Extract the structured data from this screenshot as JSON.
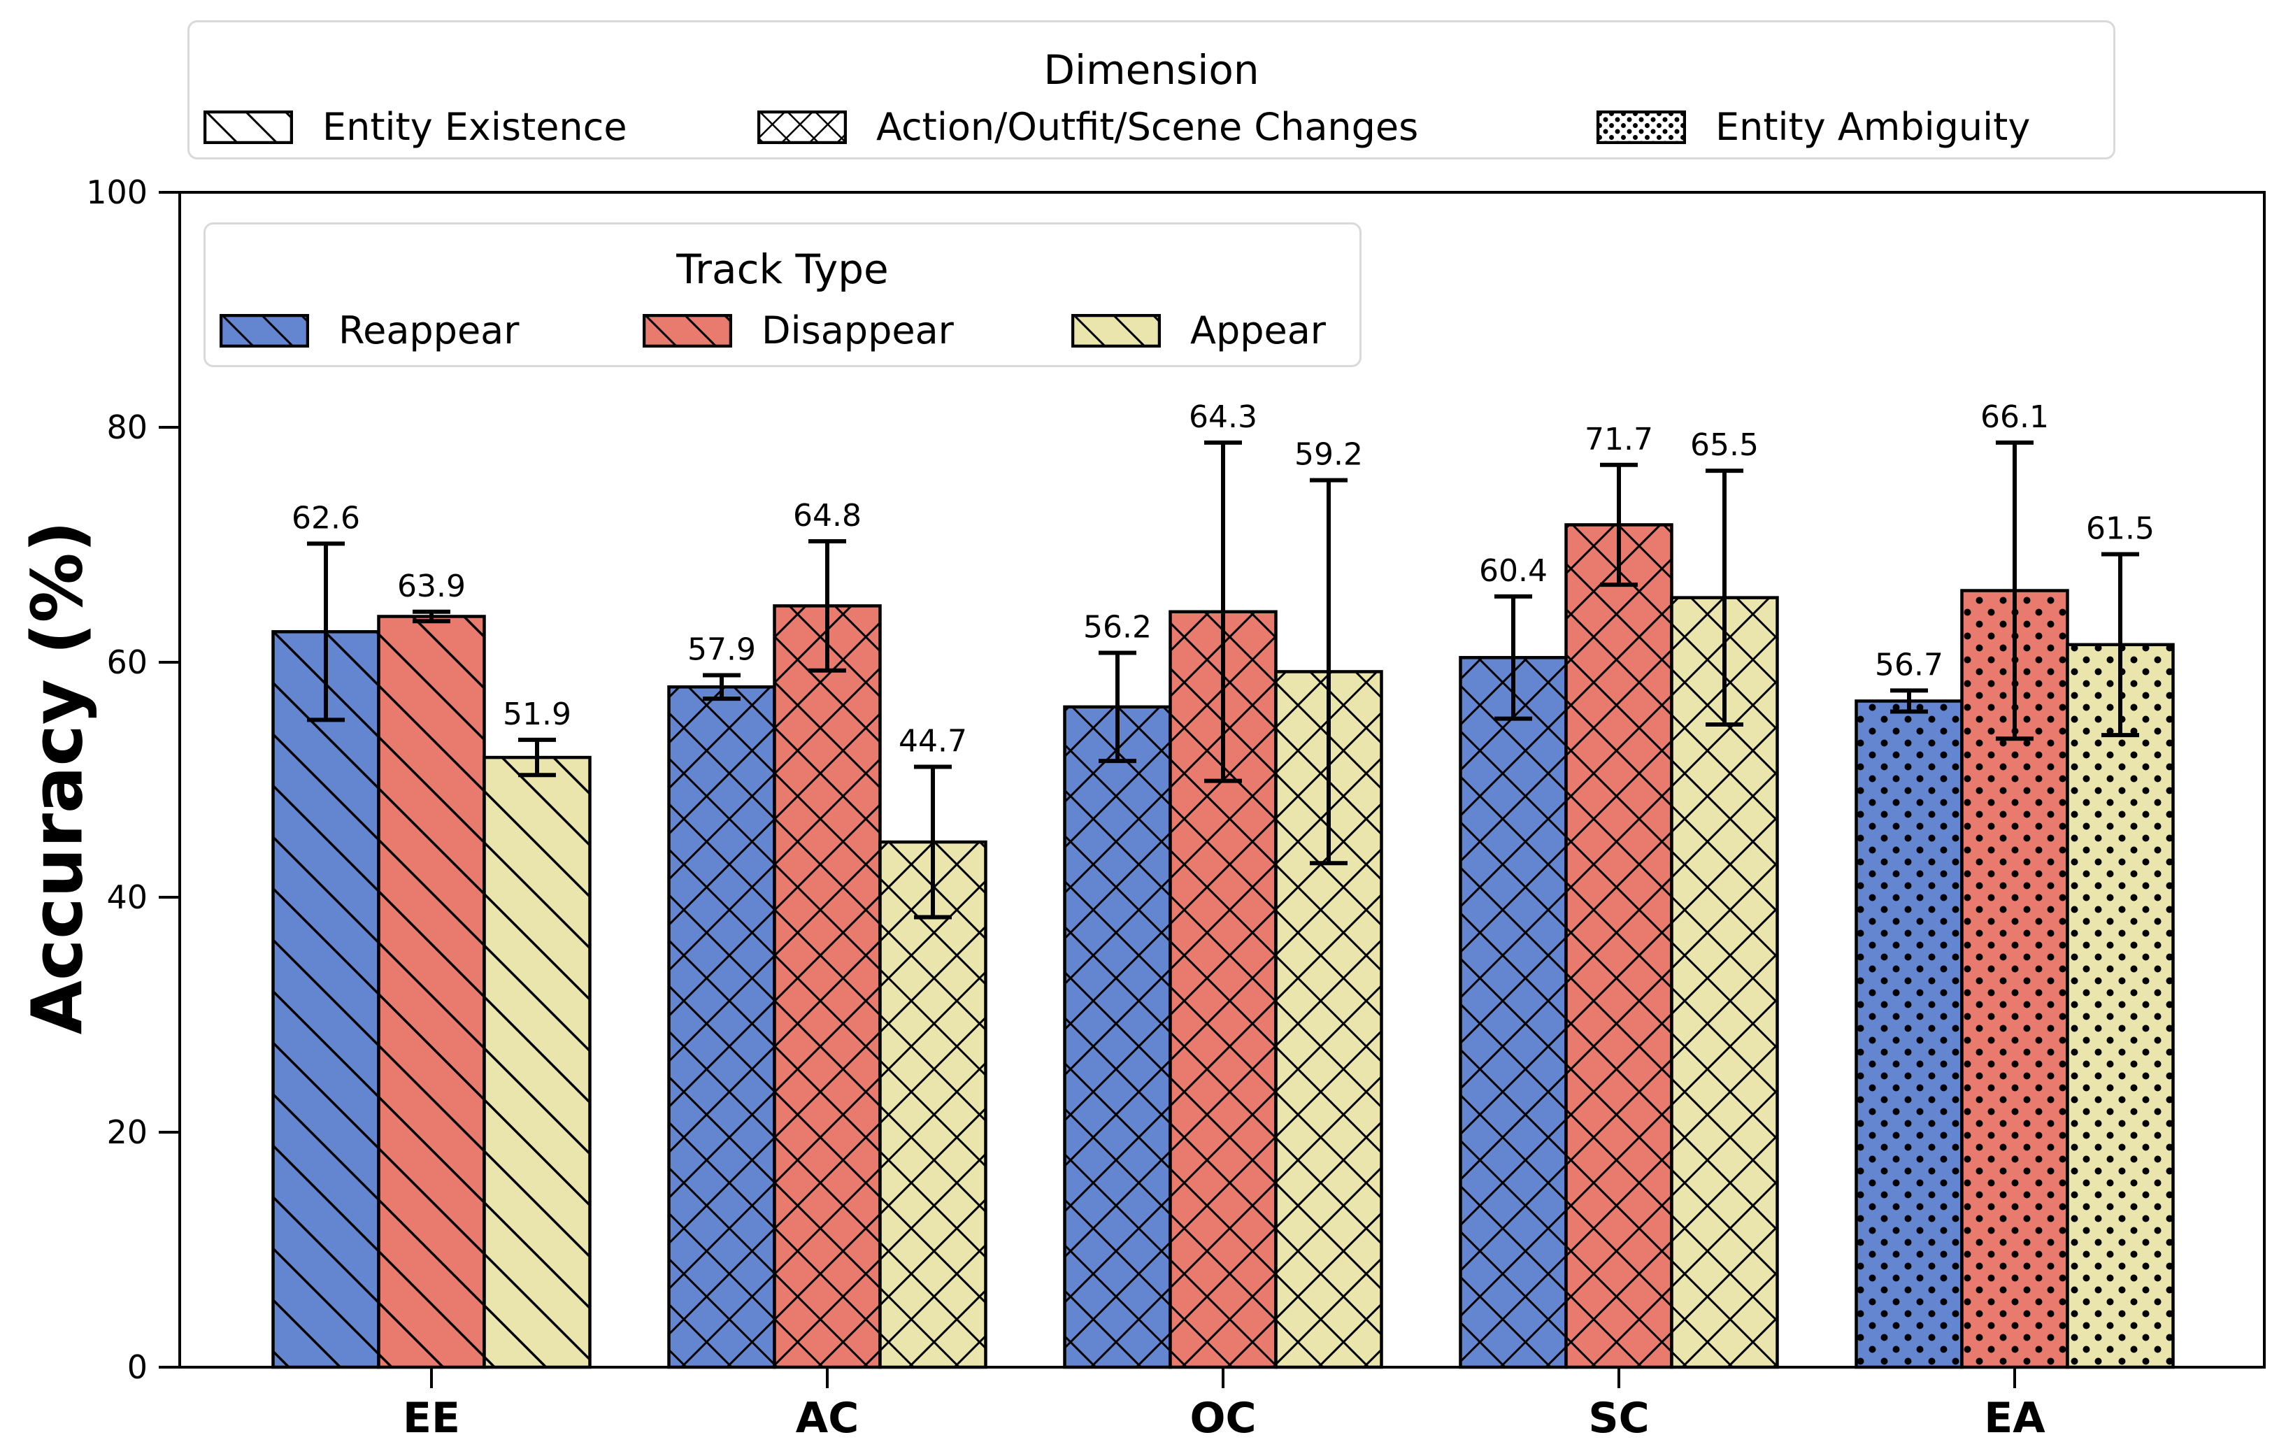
{
  "chart_data": {
    "type": "bar",
    "title": "",
    "ylabel": "Accuracy (%)",
    "ylim": [
      0,
      100
    ],
    "yticks": [
      "0",
      "20",
      "40",
      "60",
      "80",
      "100"
    ],
    "categories": [
      "EE",
      "AC",
      "OC",
      "SC",
      "EA"
    ],
    "category_hatch": [
      "diagonal",
      "cross",
      "cross",
      "cross",
      "dots"
    ],
    "grid": "off",
    "series": [
      {
        "name": "Reappear",
        "color": "#6486D0",
        "values": [
          62.6,
          57.9,
          56.2,
          60.4,
          56.7
        ],
        "errors": [
          7.5,
          1.0,
          4.6,
          5.2,
          0.9
        ]
      },
      {
        "name": "Disappear",
        "color": "#E87B6D",
        "values": [
          63.9,
          64.8,
          64.3,
          71.7,
          66.1
        ],
        "errors": [
          0.4,
          5.5,
          14.4,
          5.1,
          12.6
        ]
      },
      {
        "name": "Appear",
        "color": "#E9E5AC",
        "values": [
          51.9,
          44.7,
          59.2,
          65.5,
          61.5
        ],
        "errors": [
          1.5,
          6.4,
          16.3,
          10.8,
          7.7
        ]
      }
    ],
    "value_labels": [
      [
        "62.6",
        "57.9",
        "56.2",
        "60.4",
        "56.7"
      ],
      [
        "63.9",
        "64.8",
        "64.3",
        "71.7",
        "66.1"
      ],
      [
        "51.9",
        "44.7",
        "59.2",
        "65.5",
        "61.5"
      ]
    ],
    "legend_dimension": {
      "title": "Dimension",
      "position": "top-outside",
      "entries": [
        {
          "label": "Entity Existence",
          "hatch": "diagonal"
        },
        {
          "label": "Action/Outfit/Scene Changes",
          "hatch": "cross"
        },
        {
          "label": "Entity Ambiguity",
          "hatch": "dots"
        }
      ]
    },
    "legend_track": {
      "title": "Track Type",
      "position": "upper-left-inside",
      "entries": [
        {
          "label": "Reappear",
          "color": "#6486D0"
        },
        {
          "label": "Disappear",
          "color": "#E87B6D"
        },
        {
          "label": "Appear",
          "color": "#E9E5AC"
        }
      ]
    },
    "colors": {
      "bar_edge": "#000000",
      "axis": "#000000",
      "legend_border": "#d9d9d9"
    }
  }
}
